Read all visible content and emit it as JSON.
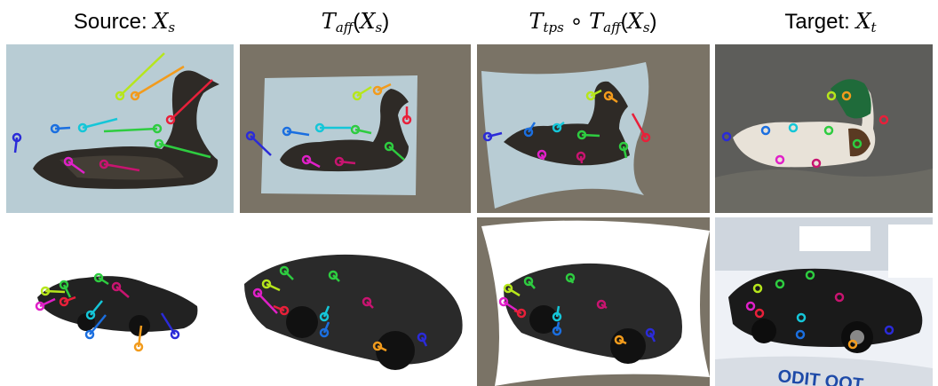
{
  "headers": {
    "source": {
      "label": "Source: ",
      "sym": "X",
      "sub": "s"
    },
    "affine": {
      "pre": "T",
      "pre_sub": "aff",
      "open": "(",
      "sym": "X",
      "sub": "s",
      "close": ")"
    },
    "tps": {
      "pre": "T",
      "pre_sub": "tps",
      "op": " ∘ ",
      "pre2": "T",
      "pre2_sub": "aff",
      "open": "(",
      "sym": "X",
      "sub": "s",
      "close": ")"
    },
    "target": {
      "label": "Target: ",
      "sym": "X",
      "sub": "t"
    }
  },
  "colors": {
    "duck_background": "#b8ccd4",
    "warp_fill": "#7a7366",
    "markers": [
      "#2b2bd8",
      "#1b6fe0",
      "#15c6d8",
      "#2ecc40",
      "#b6e61c",
      "#f29b1c",
      "#e8203a",
      "#e020c8",
      "#c81470"
    ]
  },
  "rows": [
    {
      "subject": "duck",
      "panels": [
        "source-duck",
        "affine-duck",
        "tps-duck",
        "target-duck"
      ]
    },
    {
      "subject": "car",
      "panels": [
        "source-car",
        "affine-car",
        "tps-car",
        "target-car"
      ]
    }
  ]
}
